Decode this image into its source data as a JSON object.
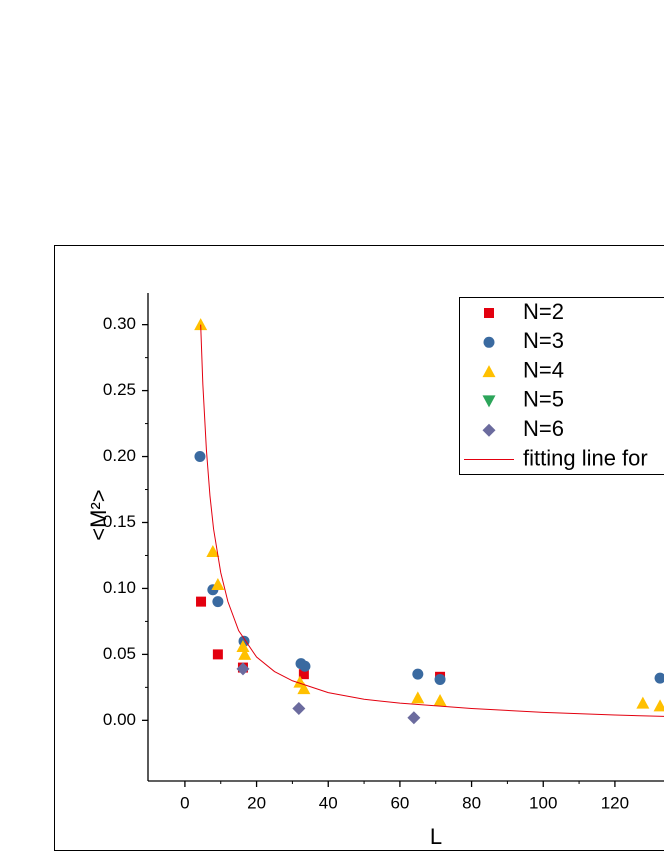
{
  "chart_data": {
    "type": "scatter",
    "xlabel": "L",
    "ylabel": "<M²>",
    "xlim": [
      -10.3,
      133.7
    ],
    "ylim": [
      -0.046,
      0.324
    ],
    "xticks": [
      0,
      20,
      40,
      60,
      80,
      100,
      120
    ],
    "yticks": [
      {
        "value": 0,
        "label": "0.00"
      },
      {
        "value": 0.05,
        "label": "0.05"
      },
      {
        "value": 0.1,
        "label": "0.10"
      },
      {
        "value": 0.15,
        "label": "0.15"
      },
      {
        "value": 0.2,
        "label": "0.20"
      },
      {
        "value": 0.25,
        "label": "0.25"
      },
      {
        "value": 0.3,
        "label": "0.30"
      }
    ],
    "series": [
      {
        "name": "N=2",
        "color": "#e3000f",
        "marker": "square",
        "x": [
          4.5,
          9.2,
          16.2,
          33.2,
          71.2
        ],
        "values": [
          0.09,
          0.05,
          0.04,
          0.035,
          0.033
        ]
      },
      {
        "name": "N=3",
        "color": "#3a6aa0",
        "marker": "circle",
        "x": [
          4.2,
          7.8,
          9.2,
          16.5,
          32.4,
          33.5,
          65,
          71.2,
          132.6
        ],
        "values": [
          0.2,
          0.099,
          0.09,
          0.06,
          0.043,
          0.041,
          0.035,
          0.031,
          0.032
        ]
      },
      {
        "name": "N=4",
        "color": "#ffc000",
        "marker": "triangle",
        "x": [
          4.4,
          7.8,
          9.2,
          16.2,
          16.7,
          32.1,
          33.2,
          65,
          71.2,
          127.8,
          132.6
        ],
        "values": [
          0.3,
          0.128,
          0.103,
          0.056,
          0.05,
          0.029,
          0.024,
          0.017,
          0.015,
          0.013,
          0.011
        ]
      },
      {
        "name": "N=5",
        "color": "#2ca55a",
        "marker": "triangle-down",
        "x": [],
        "values": []
      },
      {
        "name": "N=6",
        "color": "#6b6b9e",
        "marker": "diamond",
        "x": [
          16.2,
          31.8,
          63.9
        ],
        "values": [
          0.039,
          0.009,
          0.002
        ]
      },
      {
        "name": "fitting line for",
        "color": "#e3000f",
        "marker": "line",
        "x": [
          4.4,
          5,
          6,
          7,
          8,
          10,
          12,
          15,
          20,
          25,
          30,
          40,
          50,
          60,
          80,
          100,
          120,
          134
        ],
        "values": [
          0.3,
          0.255,
          0.205,
          0.17,
          0.145,
          0.112,
          0.09,
          0.068,
          0.048,
          0.037,
          0.03,
          0.021,
          0.016,
          0.013,
          0.009,
          0.006,
          0.004,
          0.003
        ]
      }
    ],
    "legend": "upper right"
  }
}
